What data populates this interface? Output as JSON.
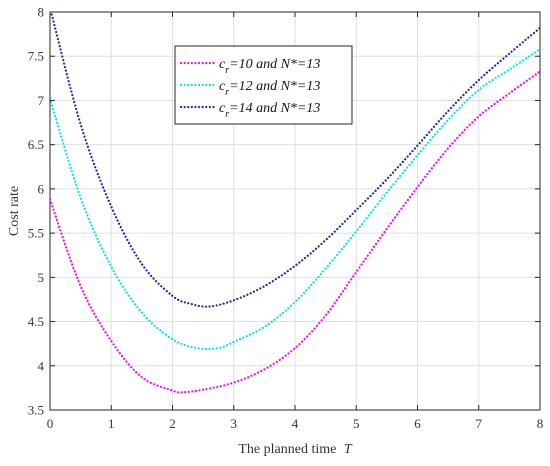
{
  "chart_data": {
    "type": "line",
    "xlabel": "The planned time",
    "xlabel_var": "T",
    "ylabel": "Cost rate",
    "xlim": [
      0,
      8
    ],
    "ylim": [
      3.5,
      8
    ],
    "xticks": [
      "0",
      "1",
      "2",
      "3",
      "4",
      "5",
      "6",
      "7",
      "8"
    ],
    "yticks": [
      "3.5",
      "4",
      "4.5",
      "5",
      "5.5",
      "6",
      "6.5",
      "7",
      "7.5",
      "8"
    ],
    "grid": true,
    "legend_position": "top-center",
    "series": [
      {
        "name": "c_r=10  and  N*=13",
        "legend": {
          "sym": "c",
          "sub": "r",
          "rest": "=10  and  N*=13"
        },
        "color": "#ff00ff",
        "x": [
          0,
          0.5,
          1,
          1.5,
          2,
          2.15,
          2.5,
          3,
          3.5,
          4,
          4.5,
          5,
          5.5,
          6,
          6.5,
          7,
          7.5,
          8
        ],
        "y": [
          5.88,
          4.9,
          4.28,
          3.87,
          3.72,
          3.7,
          3.73,
          3.81,
          3.96,
          4.2,
          4.57,
          5.06,
          5.55,
          6.02,
          6.46,
          6.82,
          7.08,
          7.33
        ]
      },
      {
        "name": "c_r=12  and  N*=13",
        "legend": {
          "sym": "c",
          "sub": "r",
          "rest": "=12  and  N*=13"
        },
        "color": "#00e5e5",
        "x": [
          0,
          0.5,
          1,
          1.5,
          2,
          2.4,
          2.75,
          3,
          3.5,
          4,
          4.5,
          5,
          5.5,
          6,
          6.5,
          7,
          7.5,
          8
        ],
        "y": [
          7.02,
          5.9,
          5.12,
          4.6,
          4.3,
          4.2,
          4.2,
          4.27,
          4.44,
          4.72,
          5.1,
          5.52,
          5.96,
          6.38,
          6.78,
          7.12,
          7.35,
          7.58
        ]
      },
      {
        "name": "c_r=14  and  N*=13",
        "legend": {
          "sym": "c",
          "sub": "r",
          "rest": "=14  and  N*=13"
        },
        "color": "#1f1fb4",
        "x": [
          0,
          0.5,
          1,
          1.5,
          2,
          2.3,
          2.6,
          3,
          3.5,
          4,
          4.5,
          5,
          5.5,
          6,
          6.5,
          7,
          7.5,
          8
        ],
        "y": [
          8.05,
          6.73,
          5.8,
          5.15,
          4.79,
          4.7,
          4.67,
          4.74,
          4.9,
          5.13,
          5.42,
          5.76,
          6.11,
          6.49,
          6.88,
          7.23,
          7.53,
          7.82
        ]
      }
    ]
  }
}
